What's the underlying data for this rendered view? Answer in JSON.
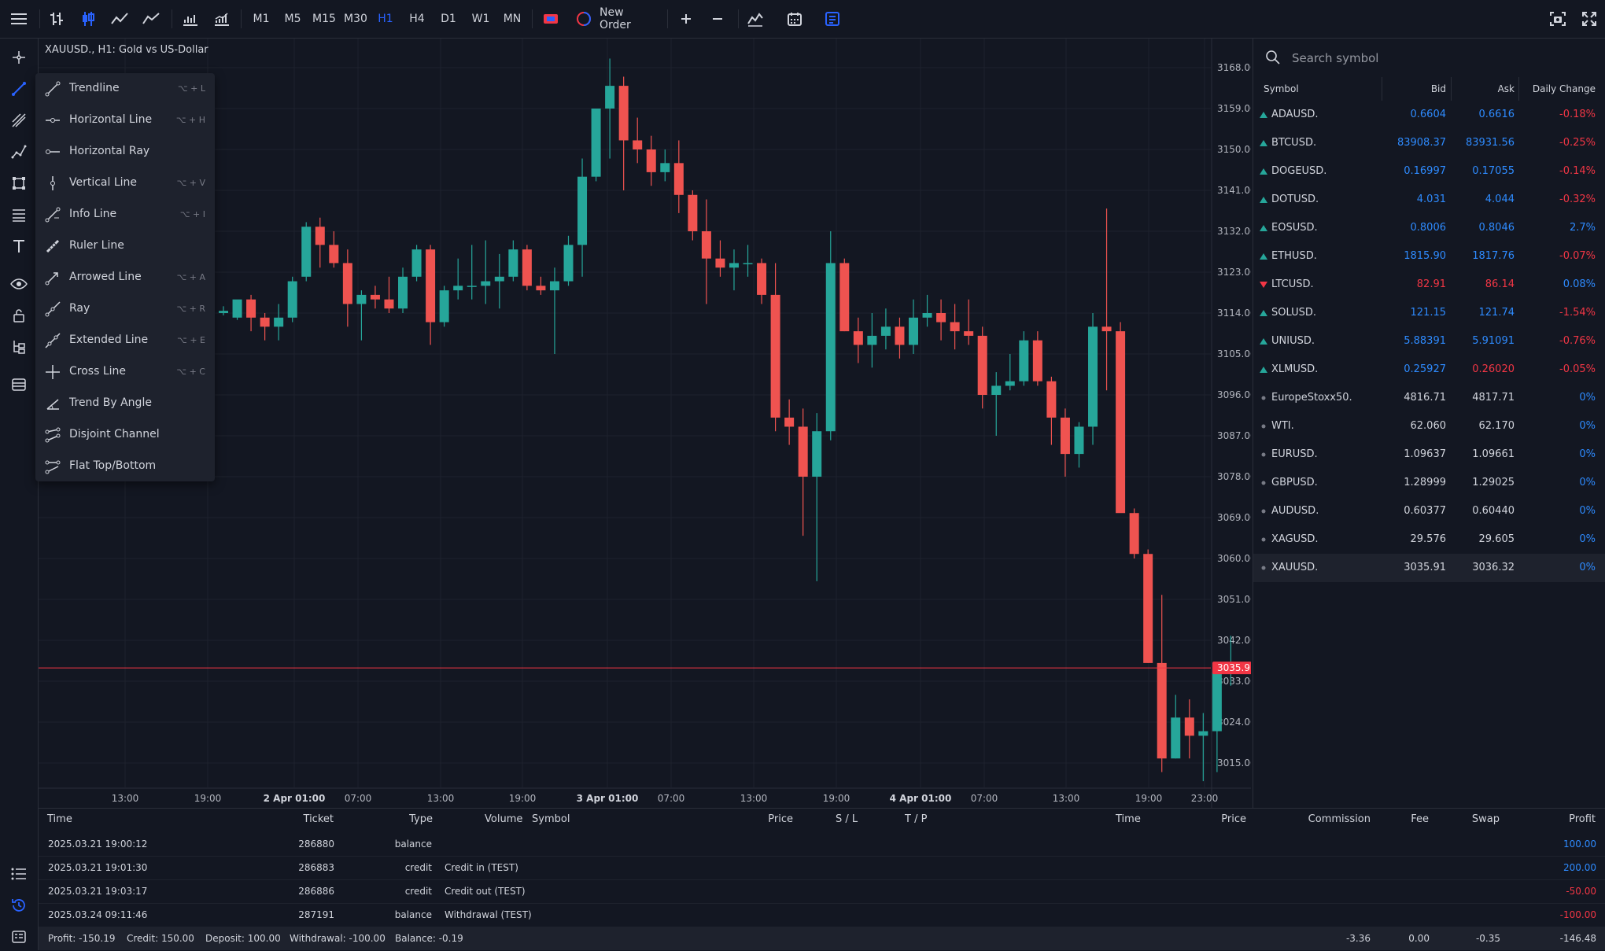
{
  "toolbar": {
    "timeframes": [
      "M1",
      "M5",
      "M15",
      "M30",
      "H1",
      "H4",
      "D1",
      "W1",
      "MN"
    ],
    "active_timeframe": "H1",
    "new_order_label": "New Order"
  },
  "chart": {
    "title": "XAUUSD., H1: Gold vs US-Dollar",
    "current_price_label": "3035.91",
    "price_axis": [
      "3168.00",
      "3159.00",
      "3150.00",
      "3141.00",
      "3132.00",
      "3123.00",
      "3114.00",
      "3105.00",
      "3096.00",
      "3087.00",
      "3078.00",
      "3069.00",
      "3060.00",
      "3051.00",
      "3042.00",
      "3033.00",
      "3024.00",
      "3015.00"
    ],
    "time_axis": [
      {
        "label": "13:00",
        "bold": false
      },
      {
        "label": "19:00",
        "bold": false
      },
      {
        "label": "2 Apr 01:00",
        "bold": true
      },
      {
        "label": "07:00",
        "bold": false
      },
      {
        "label": "13:00",
        "bold": false
      },
      {
        "label": "19:00",
        "bold": false
      },
      {
        "label": "3 Apr 01:00",
        "bold": true
      },
      {
        "label": "07:00",
        "bold": false
      },
      {
        "label": "13:00",
        "bold": false
      },
      {
        "label": "19:00",
        "bold": false
      },
      {
        "label": "4 Apr 01:00",
        "bold": true
      },
      {
        "label": "07:00",
        "bold": false
      },
      {
        "label": "13:00",
        "bold": false
      },
      {
        "label": "19:00",
        "bold": false
      },
      {
        "label": "23:00",
        "bold": false
      }
    ],
    "colors": {
      "up": "#26a69a",
      "down": "#ef5350",
      "price_line": "#f23645"
    }
  },
  "drawing_menu": [
    {
      "label": "Trendline",
      "shortcut": "⌥ + L",
      "icon": "trendline-icon"
    },
    {
      "label": "Horizontal Line",
      "shortcut": "⌥ + H",
      "icon": "horizontal-line-icon"
    },
    {
      "label": "Horizontal Ray",
      "shortcut": "",
      "icon": "horizontal-ray-icon"
    },
    {
      "label": "Vertical Line",
      "shortcut": "⌥ + V",
      "icon": "vertical-line-icon"
    },
    {
      "label": "Info Line",
      "shortcut": "⌥ + I",
      "icon": "info-line-icon"
    },
    {
      "label": "Ruler Line",
      "shortcut": "",
      "icon": "ruler-line-icon"
    },
    {
      "label": "Arrowed Line",
      "shortcut": "⌥ + A",
      "icon": "arrowed-line-icon"
    },
    {
      "label": "Ray",
      "shortcut": "⌥ + R",
      "icon": "ray-icon"
    },
    {
      "label": "Extended Line",
      "shortcut": "⌥ + E",
      "icon": "extended-line-icon"
    },
    {
      "label": "Cross Line",
      "shortcut": "⌥ + C",
      "icon": "cross-line-icon"
    },
    {
      "label": "Trend By Angle",
      "shortcut": "",
      "icon": "trend-angle-icon"
    },
    {
      "label": "Disjoint Channel",
      "shortcut": "",
      "icon": "disjoint-channel-icon"
    },
    {
      "label": "Flat Top/Bottom",
      "shortcut": "",
      "icon": "flat-top-bottom-icon"
    }
  ],
  "watchlist": {
    "search_placeholder": "Search symbol",
    "headers": {
      "symbol": "Symbol",
      "bid": "Bid",
      "ask": "Ask",
      "change": "Daily Change"
    },
    "rows": [
      {
        "symbol": "ADAUSD.",
        "bid": "0.6604",
        "ask": "0.6616",
        "change": "-0.18%",
        "trend": "up",
        "bidc": "blue",
        "askc": "blue",
        "chc": "red"
      },
      {
        "symbol": "BTCUSD.",
        "bid": "83908.37",
        "ask": "83931.56",
        "change": "-0.25%",
        "trend": "up",
        "bidc": "blue",
        "askc": "blue",
        "chc": "red"
      },
      {
        "symbol": "DOGEUSD.",
        "bid": "0.16997",
        "ask": "0.17055",
        "change": "-0.14%",
        "trend": "up",
        "bidc": "blue",
        "askc": "blue",
        "chc": "red"
      },
      {
        "symbol": "DOTUSD.",
        "bid": "4.031",
        "ask": "4.044",
        "change": "-0.32%",
        "trend": "up",
        "bidc": "blue",
        "askc": "blue",
        "chc": "red"
      },
      {
        "symbol": "EOSUSD.",
        "bid": "0.8006",
        "ask": "0.8046",
        "change": "2.7%",
        "trend": "up",
        "bidc": "blue",
        "askc": "blue",
        "chc": "blue"
      },
      {
        "symbol": "ETHUSD.",
        "bid": "1815.90",
        "ask": "1817.76",
        "change": "-0.07%",
        "trend": "up",
        "bidc": "blue",
        "askc": "blue",
        "chc": "red"
      },
      {
        "symbol": "LTCUSD.",
        "bid": "82.91",
        "ask": "86.14",
        "change": "0.08%",
        "trend": "down",
        "bidc": "red",
        "askc": "red",
        "chc": "blue"
      },
      {
        "symbol": "SOLUSD.",
        "bid": "121.15",
        "ask": "121.74",
        "change": "-1.54%",
        "trend": "up",
        "bidc": "blue",
        "askc": "blue",
        "chc": "red"
      },
      {
        "symbol": "UNIUSD.",
        "bid": "5.88391",
        "ask": "5.91091",
        "change": "-0.76%",
        "trend": "up",
        "bidc": "blue",
        "askc": "blue",
        "chc": "red"
      },
      {
        "symbol": "XLMUSD.",
        "bid": "0.25927",
        "ask": "0.26020",
        "change": "-0.05%",
        "trend": "up",
        "bidc": "blue",
        "askc": "red",
        "chc": "red"
      },
      {
        "symbol": "EuropeStoxx50.",
        "bid": "4816.71",
        "ask": "4817.71",
        "change": "0%",
        "trend": "flat",
        "bidc": "white",
        "askc": "white",
        "chc": "blue"
      },
      {
        "symbol": "WTI.",
        "bid": "62.060",
        "ask": "62.170",
        "change": "0%",
        "trend": "flat",
        "bidc": "white",
        "askc": "white",
        "chc": "blue"
      },
      {
        "symbol": "EURUSD.",
        "bid": "1.09637",
        "ask": "1.09661",
        "change": "0%",
        "trend": "flat",
        "bidc": "white",
        "askc": "white",
        "chc": "blue"
      },
      {
        "symbol": "GBPUSD.",
        "bid": "1.28999",
        "ask": "1.29025",
        "change": "0%",
        "trend": "flat",
        "bidc": "white",
        "askc": "white",
        "chc": "blue"
      },
      {
        "symbol": "AUDUSD.",
        "bid": "0.60377",
        "ask": "0.60440",
        "change": "0%",
        "trend": "flat",
        "bidc": "white",
        "askc": "white",
        "chc": "blue"
      },
      {
        "symbol": "XAGUSD.",
        "bid": "29.576",
        "ask": "29.605",
        "change": "0%",
        "trend": "flat",
        "bidc": "white",
        "askc": "white",
        "chc": "blue"
      },
      {
        "symbol": "XAUUSD.",
        "bid": "3035.91",
        "ask": "3036.32",
        "change": "0%",
        "trend": "flat",
        "bidc": "white",
        "askc": "white",
        "chc": "blue",
        "selected": true
      }
    ]
  },
  "history": {
    "headers": {
      "time": "Time",
      "ticket": "Ticket",
      "type": "Type",
      "volume": "Volume",
      "symbol": "Symbol",
      "price": "Price",
      "sl": "S / L",
      "tp": "T / P",
      "time2": "Time",
      "price2": "Price",
      "commission": "Commission",
      "fee": "Fee",
      "swap": "Swap",
      "profit": "Profit"
    },
    "rows": [
      {
        "time": "2025.03.21 19:00:12",
        "ticket": "286880",
        "type": "balance",
        "symbol": "",
        "profit": "100.00",
        "pc": "blue"
      },
      {
        "time": "2025.03.21 19:01:30",
        "ticket": "286883",
        "type": "credit",
        "symbol": "Credit in (TEST)",
        "profit": "200.00",
        "pc": "blue"
      },
      {
        "time": "2025.03.21 19:03:17",
        "ticket": "286886",
        "type": "credit",
        "symbol": "Credit out (TEST)",
        "profit": "-50.00",
        "pc": "red"
      },
      {
        "time": "2025.03.24 09:11:46",
        "ticket": "287191",
        "type": "balance",
        "symbol": "Withdrawal (TEST)",
        "profit": "-100.00",
        "pc": "red"
      }
    ],
    "summary": {
      "profit": "Profit: -150.19",
      "credit": "Credit: 150.00",
      "deposit": "Deposit: 100.00",
      "withdrawal": "Withdrawal: -100.00",
      "balance": "Balance: -0.19",
      "commission": "-3.36",
      "fee": "0.00",
      "swap": "-0.35",
      "total": "-146.48"
    }
  }
}
